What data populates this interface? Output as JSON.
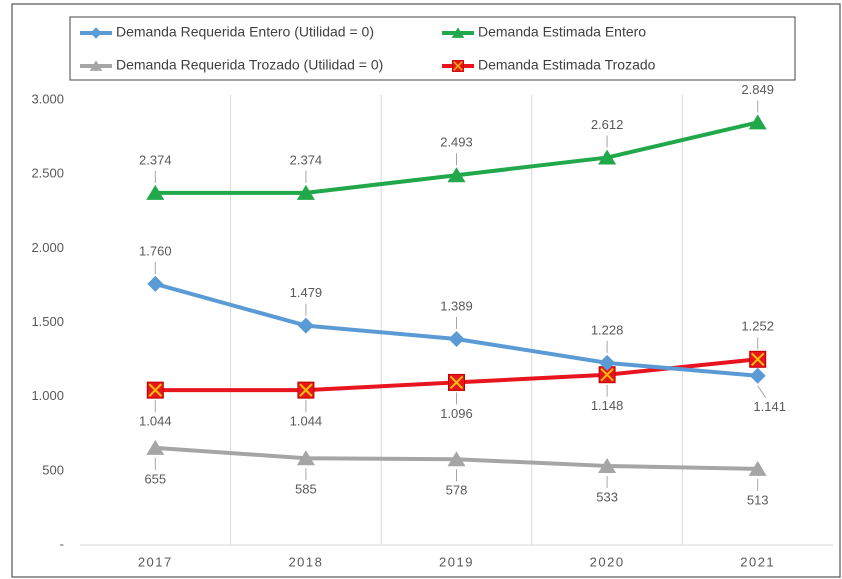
{
  "chart_data": {
    "type": "line",
    "categories": [
      "2017",
      "2018",
      "2019",
      "2020",
      "2021"
    ],
    "series": [
      {
        "name": "Demanda Requerida Entero (Utilidad = 0)",
        "color": "#5b9bd5",
        "marker": "diamond",
        "values": [
          1760,
          1479,
          1389,
          1228,
          1141
        ],
        "value_labels": [
          "1.760",
          "1.479",
          "1.389",
          "1.228",
          "1.141"
        ]
      },
      {
        "name": "Demanda Estimada Entero",
        "color": "#21a84a",
        "marker": "triangle",
        "values": [
          2374,
          2374,
          2493,
          2612,
          2849
        ],
        "value_labels": [
          "2.374",
          "2.374",
          "2.493",
          "2.612",
          "2.849"
        ]
      },
      {
        "name": "Demanda Requerida Trozado (Utilidad = 0)",
        "color": "#a5a5a5",
        "marker": "triangle",
        "values": [
          655,
          585,
          578,
          533,
          513
        ],
        "value_labels": [
          "655",
          "585",
          "578",
          "533",
          "513"
        ]
      },
      {
        "name": "Demanda Estimada Trozado",
        "color": "#e8141e",
        "marker": "square-x",
        "values": [
          1044,
          1044,
          1096,
          1148,
          1252
        ],
        "value_labels": [
          "1.044",
          "1.044",
          "1.096",
          "1.148",
          "1.252"
        ]
      }
    ],
    "ylim": [
      0,
      3000
    ],
    "yticks": [
      {
        "value": 0,
        "label": "-"
      },
      500,
      {
        "value": 1000,
        "label": "1.000"
      },
      {
        "value": 1500,
        "label": "1.500"
      },
      {
        "value": 2000,
        "label": "2.000"
      },
      {
        "value": 2500,
        "label": "2.500"
      },
      {
        "value": 3000,
        "label": "3.000"
      }
    ],
    "grid": "x",
    "legend": "top"
  }
}
